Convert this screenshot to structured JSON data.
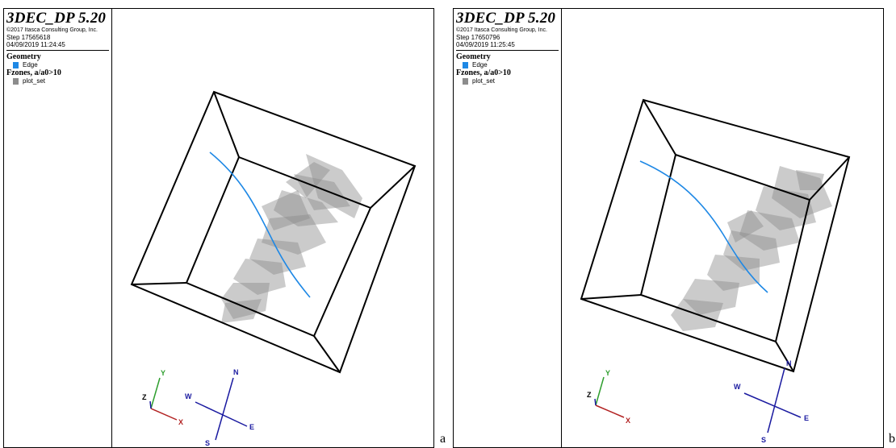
{
  "panels": [
    {
      "id": "a",
      "app_title": "3DEC_DP 5.20",
      "copyright": "©2017 Itasca Consulting Group, Inc.",
      "step": "Step 17565618",
      "datetime": "04/09/2019 11:24:45",
      "geometry_title": "Geometry",
      "geometry_item": "Edge",
      "fzones_title": "Fzones, a/a0>10",
      "fzones_item": "plot_set",
      "label": "a",
      "axes": {
        "x": "X",
        "y": "Y",
        "z": "Z"
      },
      "compass": {
        "n": "N",
        "s": "S",
        "e": "E",
        "w": "W"
      }
    },
    {
      "id": "b",
      "app_title": "3DEC_DP 5.20",
      "copyright": "©2017 Itasca Consulting Group, Inc.",
      "step": "Step 17650796",
      "datetime": "04/09/2019 11:25:45",
      "geometry_title": "Geometry",
      "geometry_item": "Edge",
      "fzones_title": "Fzones, a/a0>10",
      "fzones_item": "plot_set",
      "label": "b",
      "axes": {
        "x": "X",
        "y": "Y",
        "z": "Z"
      },
      "compass": {
        "n": "N",
        "s": "S",
        "e": "E",
        "w": "W"
      }
    }
  ],
  "colors": {
    "edge": "#1e88e5",
    "plot_set": "#8c8c8c",
    "axis_x": "#b22222",
    "axis_y": "#2e9e2e",
    "axis_z": "#1a1aa0",
    "compass": "#1a1aa0"
  },
  "icons": {
    "edge_swatch": "blue-square-icon",
    "plot_set_swatch": "gray-square-icon"
  }
}
